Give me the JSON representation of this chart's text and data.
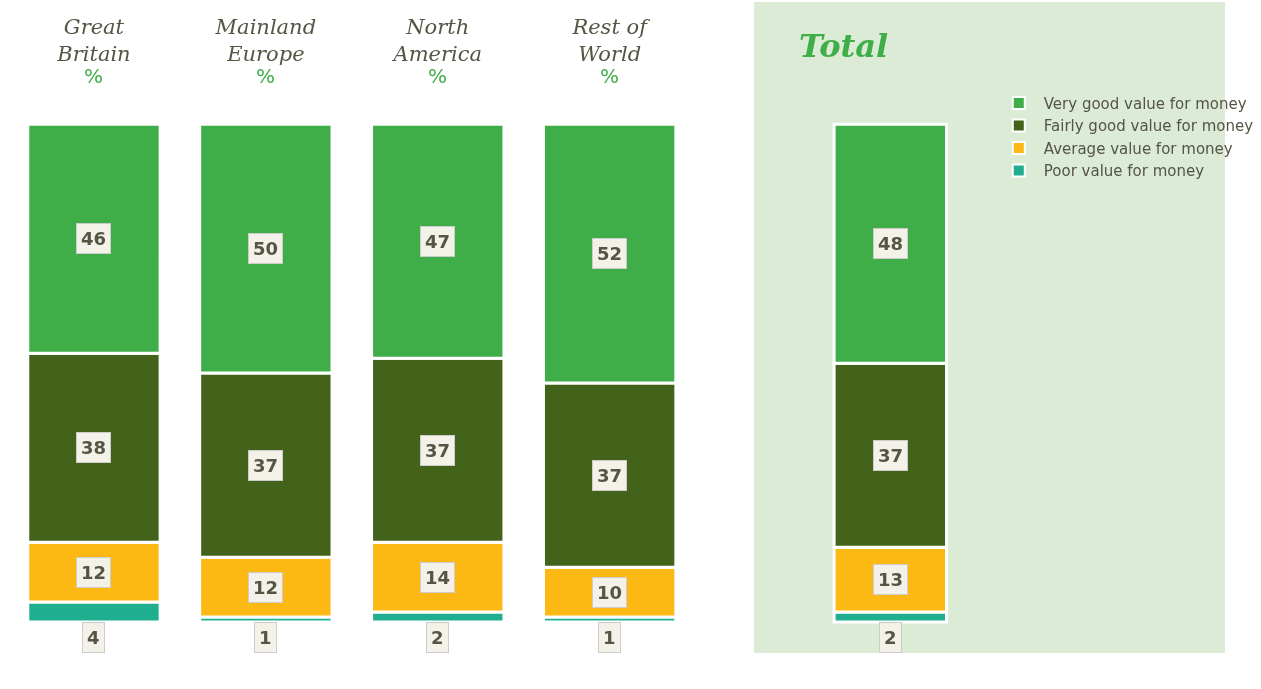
{
  "chart_data": [
    {
      "type": "bar",
      "stacked": true,
      "data_labels": true,
      "categories": [
        "Great Britain",
        "Mainland Europe",
        "North America",
        "Rest of World"
      ],
      "annotations": [
        "%",
        "%",
        "%",
        "%"
      ],
      "series": [
        {
          "color": "#1fae8f",
          "values": [
            4,
            1,
            2,
            1
          ]
        },
        {
          "color": "#fdb913",
          "values": [
            12,
            12,
            14,
            10
          ]
        },
        {
          "color": "#44631a",
          "values": [
            38,
            37,
            37,
            37
          ]
        },
        {
          "color": "#3fae49",
          "values": [
            46,
            50,
            47,
            52
          ]
        }
      ]
    },
    {
      "type": "bar",
      "stacked": true,
      "data_labels": true,
      "legend": "right",
      "title": "Total",
      "categories": [
        null
      ],
      "series": [
        {
          "name": "Poor value for money",
          "color": "#1fae8f",
          "values": [
            2
          ]
        },
        {
          "name": "Average value for money",
          "color": "#fdb913",
          "values": [
            13
          ]
        },
        {
          "name": "Fairly good value for money",
          "color": "#44631a",
          "values": [
            37
          ]
        },
        {
          "name": "Very good value for money",
          "color": "#3fae49",
          "values": [
            48
          ]
        }
      ]
    }
  ]
}
